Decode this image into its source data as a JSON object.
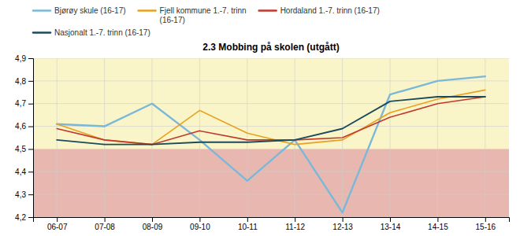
{
  "chart_data": {
    "type": "line",
    "title": "2.3 Mobbing på skolen (utgått)",
    "categories": [
      "06-07",
      "07-08",
      "08-09",
      "09-10",
      "10-11",
      "11-12",
      "12-13",
      "13-14",
      "14-15",
      "15-16"
    ],
    "series": [
      {
        "name": "Bjørøy skule (16-17)",
        "color": "#7ab8d9",
        "values": [
          4.61,
          4.6,
          4.7,
          4.54,
          4.36,
          4.54,
          4.22,
          4.74,
          4.8,
          4.82
        ]
      },
      {
        "name": "Fjell kommune 1.-7. trinn\n(16-17)",
        "color": "#e8a020",
        "values": [
          4.61,
          4.54,
          4.52,
          4.67,
          4.57,
          4.52,
          4.54,
          4.66,
          4.72,
          4.76
        ]
      },
      {
        "name": "Hordaland 1.-7. trinn (16-17)",
        "color": "#c0392b",
        "values": [
          4.59,
          4.54,
          4.52,
          4.58,
          4.54,
          4.54,
          4.55,
          4.64,
          4.7,
          4.73
        ]
      },
      {
        "name": "Nasjonalt 1.-7. trinn (16-17)",
        "color": "#1a4a5c",
        "values": [
          4.54,
          4.52,
          4.52,
          4.53,
          4.53,
          4.54,
          4.59,
          4.71,
          4.73,
          4.73
        ]
      }
    ],
    "ylim": [
      4.2,
      4.9
    ],
    "yticks": [
      {
        "value": 4.2,
        "label": "4,2"
      },
      {
        "value": 4.3,
        "label": "4,3"
      },
      {
        "value": 4.4,
        "label": "4,4"
      },
      {
        "value": 4.5,
        "label": "4,5"
      },
      {
        "value": 4.6,
        "label": "4,6"
      },
      {
        "value": 4.7,
        "label": "4,7"
      },
      {
        "value": 4.8,
        "label": "4,8"
      },
      {
        "value": 4.9,
        "label": "4,9"
      }
    ],
    "zones": [
      {
        "from": 4.2,
        "to": 4.5,
        "color": "#e8b8b0"
      },
      {
        "from": 4.5,
        "to": 4.9,
        "color": "#faf5c8"
      }
    ],
    "grid": true,
    "legend": "top"
  }
}
